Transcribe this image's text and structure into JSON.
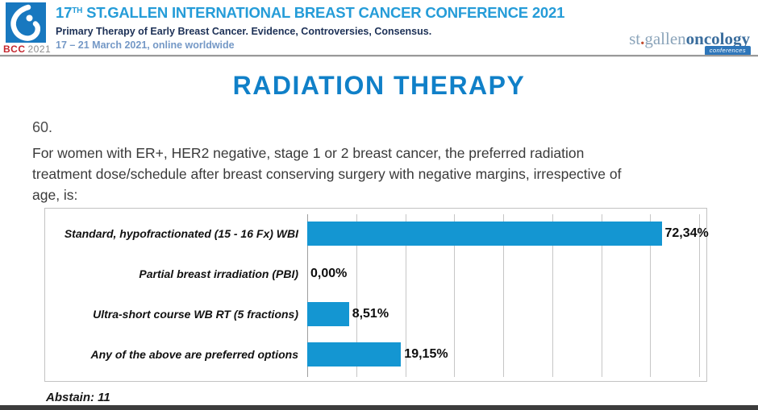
{
  "header": {
    "logo_badge": {
      "bcc": "BCC",
      "year": "2021"
    },
    "title_prefix": "17",
    "title_sup": "TH",
    "title_rest": " ST.GALLEN INTERNATIONAL BREAST CANCER CONFERENCE 2021",
    "subtitle": "Primary Therapy of Early Breast Cancer. Evidence, Controversies, Consensus.",
    "dates": "17 – 21 March 2021, online worldwide",
    "brand": {
      "st": "st",
      "dot": ".",
      "gallen": "gallen",
      "oncology": "oncology",
      "badge": "conferences"
    }
  },
  "slide": {
    "title": "RADIATION THERAPY",
    "question_number": "60.",
    "question_lines": [
      "For women with ER+, HER2 negative, stage 1 or 2 breast cancer, the preferred radiation",
      "treatment dose/schedule after breast conserving surgery with negative margins, irrespective of",
      "age, is:"
    ],
    "abstain": "Abstain: 11"
  },
  "chart_data": {
    "type": "bar",
    "orientation": "horizontal",
    "title": "",
    "categories": [
      "Standard, hypofractionated (15 - 16 Fx) WBI",
      "Partial breast irradiation (PBI)",
      "Ultra-short course WB RT (5 fractions)",
      "Any of the above are preferred options"
    ],
    "values": [
      72.34,
      0.0,
      8.51,
      19.15
    ],
    "value_labels": [
      "72,34%",
      "0,00%",
      "8,51%",
      "19,15%"
    ],
    "xlim": [
      0,
      80
    ],
    "gridline_interval": 10,
    "grid": true,
    "legend": false,
    "bar_color": "#1496d2"
  },
  "colors": {
    "header_title_blue": "#259cd8",
    "subtitle_navy": "#1c3056",
    "dates_blue": "#7498c6",
    "slide_title_blue": "#1080c8",
    "bar_blue": "#1496d2",
    "bcc_red": "#c4262e",
    "logo_square_blue": "#1878bf",
    "brand_light": "#8ba4ba",
    "brand_dark": "#3a6d9d",
    "badge_blue": "#2e76ba",
    "bottom_strip": "#3c3c3c"
  }
}
